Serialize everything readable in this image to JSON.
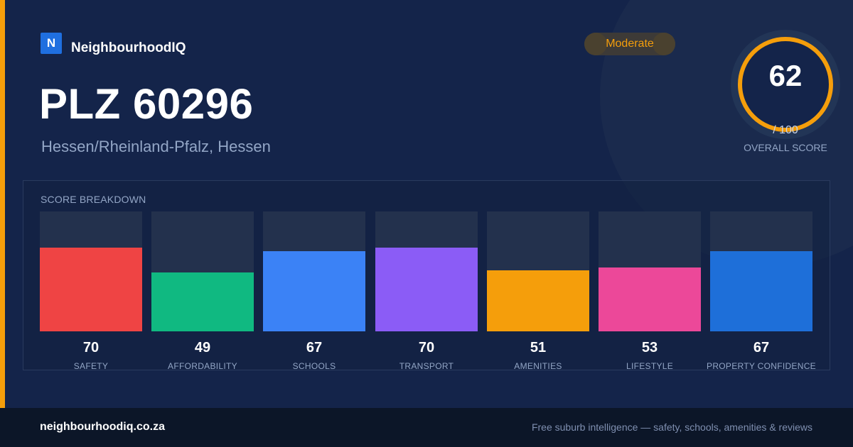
{
  "brand": {
    "logo_letter": "N",
    "name": "NeighbourhoodIQ"
  },
  "title": "PLZ 60296",
  "subtitle": "Hessen/Rheinland-Pfalz, Hessen",
  "badge": {
    "label": "Moderate",
    "color": "#f59e0b"
  },
  "overall": {
    "score": "62",
    "max": "/ 100",
    "label": "OVERALL SCORE"
  },
  "breakdown": {
    "title": "SCORE BREAKDOWN",
    "items": [
      {
        "label": "SAFETY",
        "value": "70",
        "color": "#ef4444"
      },
      {
        "label": "AFFORDABILITY",
        "value": "49",
        "color": "#10b981"
      },
      {
        "label": "SCHOOLS",
        "value": "67",
        "color": "#3b82f6"
      },
      {
        "label": "TRANSPORT",
        "value": "70",
        "color": "#8b5cf6"
      },
      {
        "label": "AMENITIES",
        "value": "51",
        "color": "#f59e0b"
      },
      {
        "label": "LIFESTYLE",
        "value": "53",
        "color": "#ec4899"
      },
      {
        "label": "PROPERTY CONFIDENCE",
        "value": "67",
        "color": "#1e6fd9"
      }
    ]
  },
  "footer": {
    "url": "neighbourhoodiq.co.za",
    "tagline": "Free suburb intelligence — safety, schools, amenities & reviews"
  }
}
